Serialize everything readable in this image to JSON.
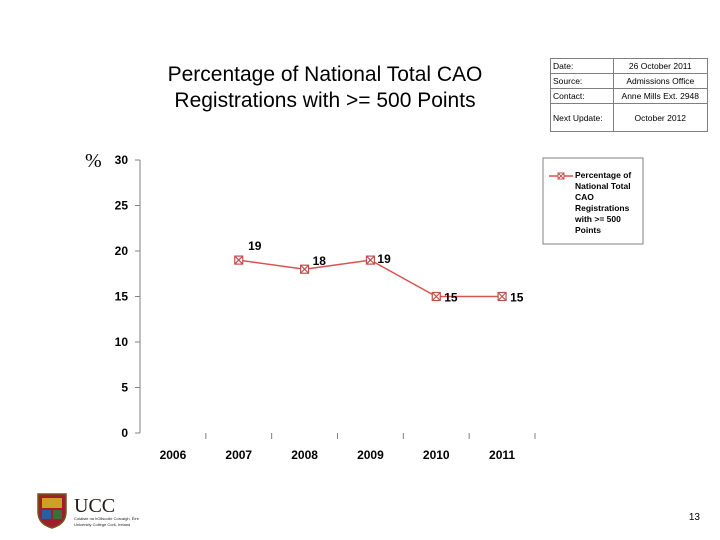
{
  "slide": {
    "title_line1": "Percentage of National Total CAO",
    "title_line2": "Registrations with >= 500 Points",
    "page_number": "13"
  },
  "info_table": [
    {
      "label": "Date:",
      "value": "26 October 2011"
    },
    {
      "label": "Source:",
      "value": "Admissions Office"
    },
    {
      "label": "Contact:",
      "value": "Anne Mills Ext. 2948"
    },
    {
      "label": "Next Update:",
      "value": "October 2012"
    }
  ],
  "logo": {
    "name": "UCC",
    "subtitle_line1": "Coláiste na hOllscoile Corcaigh, Éire",
    "subtitle_line2": "University College Cork, Ireland"
  },
  "chart_data": {
    "type": "line",
    "ylabel": "%",
    "x": [
      "2006",
      "2007",
      "2008",
      "2009",
      "2010",
      "2011"
    ],
    "series": [
      {
        "name": "Percentage of National Total CAO Registrations with >= 500 Points",
        "values": [
          null,
          19,
          18,
          19,
          15,
          15
        ]
      }
    ],
    "data_labels": [
      "",
      "19",
      "18",
      "19",
      "15",
      "15"
    ],
    "yticks": [
      "0",
      "5",
      "10",
      "15",
      "20",
      "25",
      "30"
    ],
    "ylim": [
      0,
      30
    ],
    "legend_lines": [
      "Percentage of",
      "National Total",
      "CAO",
      "Registrations",
      "with >= 500",
      "Points"
    ],
    "legend_position": "top-right",
    "line_color": "#d9534f",
    "marker_color": "#c0504d"
  }
}
